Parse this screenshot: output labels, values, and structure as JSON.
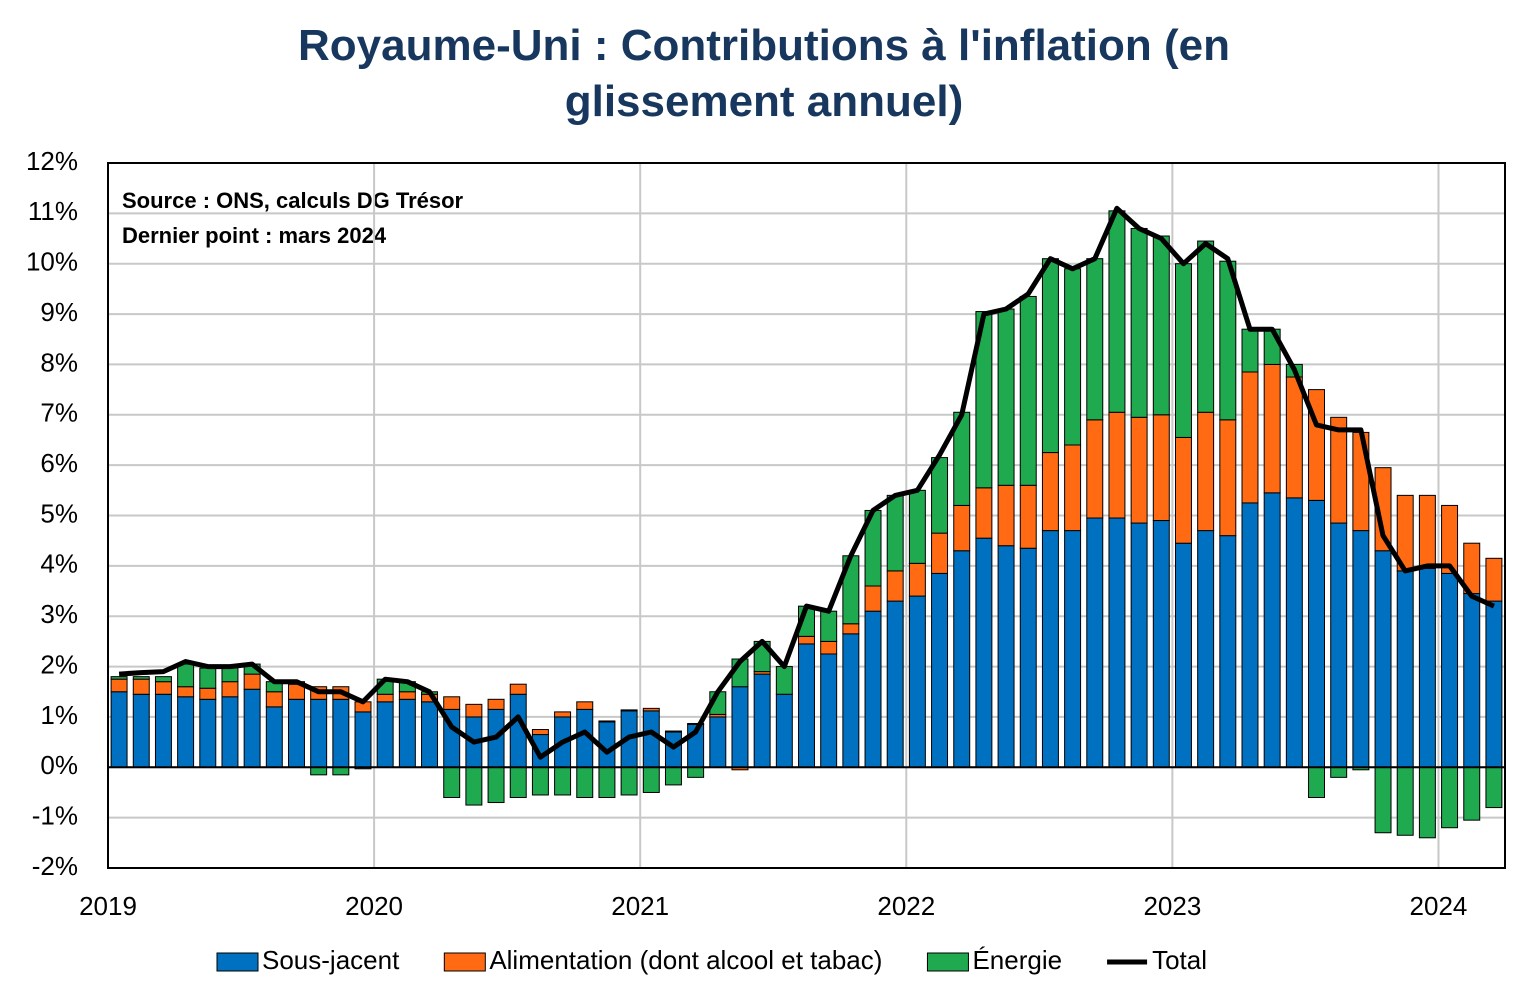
{
  "chart_data": {
    "type": "bar",
    "stacked": true,
    "title": "Royaume-Uni : Contributions à l'inflation (en glissement annuel)",
    "annotations": [
      "Source : ONS, calculs DG Trésor",
      "Dernier point : mars 2024"
    ],
    "categories": [
      "2019",
      null,
      null,
      null,
      null,
      null,
      null,
      null,
      null,
      null,
      null,
      null,
      "2020",
      null,
      null,
      null,
      null,
      null,
      null,
      null,
      null,
      null,
      null,
      null,
      "2021",
      null,
      null,
      null,
      null,
      null,
      null,
      null,
      null,
      null,
      null,
      null,
      "2022",
      null,
      null,
      null,
      null,
      null,
      null,
      null,
      null,
      null,
      null,
      null,
      "2023",
      null,
      null,
      null,
      null,
      null,
      null,
      null,
      null,
      null,
      null,
      null,
      "2024",
      null,
      null
    ],
    "series": [
      {
        "name": "Sous-jacent",
        "color": "#0070c0",
        "values": [
          1.5,
          1.45,
          1.45,
          1.4,
          1.35,
          1.4,
          1.55,
          1.2,
          1.35,
          1.35,
          1.35,
          1.1,
          1.3,
          1.35,
          1.3,
          1.15,
          1.0,
          1.15,
          1.45,
          0.65,
          1.0,
          1.15,
          0.9,
          1.12,
          1.12,
          0.7,
          0.85,
          1.0,
          1.6,
          1.85,
          1.45,
          2.45,
          2.25,
          2.65,
          3.1,
          3.3,
          3.4,
          3.85,
          4.3,
          4.55,
          4.4,
          4.35,
          4.7,
          4.7,
          4.95,
          4.95,
          4.85,
          4.9,
          4.45,
          4.7,
          4.6,
          5.25,
          5.45,
          5.35,
          5.3,
          4.85,
          4.7,
          4.3,
          3.9,
          3.95,
          3.85,
          3.45,
          3.3
        ]
      },
      {
        "name": "Alimentation (dont alcool et tabac)",
        "color": "#ff6a13",
        "values": [
          0.25,
          0.3,
          0.25,
          0.2,
          0.22,
          0.3,
          0.3,
          0.3,
          0.3,
          0.25,
          0.25,
          0.2,
          0.15,
          0.15,
          0.15,
          0.25,
          0.25,
          0.2,
          0.2,
          0.1,
          0.1,
          0.15,
          0.02,
          0.02,
          0.05,
          0.02,
          0.02,
          0.05,
          -0.05,
          0.05,
          0.0,
          0.15,
          0.25,
          0.2,
          0.5,
          0.6,
          0.65,
          0.8,
          0.9,
          1.0,
          1.2,
          1.25,
          1.55,
          1.7,
          1.95,
          2.1,
          2.1,
          2.1,
          2.1,
          2.35,
          2.3,
          2.6,
          2.55,
          2.4,
          2.2,
          2.1,
          1.95,
          1.65,
          1.5,
          1.45,
          1.35,
          1.0,
          0.85
        ]
      },
      {
        "name": "Énergie",
        "color": "#1faa4f",
        "values": [
          0.05,
          0.05,
          0.1,
          0.45,
          0.4,
          0.3,
          0.2,
          0.2,
          0.05,
          -0.15,
          -0.15,
          -0.03,
          0.3,
          0.2,
          0.05,
          -0.6,
          -0.75,
          -0.7,
          -0.6,
          -0.55,
          -0.55,
          -0.6,
          -0.6,
          -0.55,
          -0.5,
          -0.35,
          -0.2,
          0.45,
          0.55,
          0.6,
          0.55,
          0.6,
          0.6,
          1.35,
          1.5,
          1.5,
          1.45,
          1.5,
          1.85,
          3.5,
          3.5,
          3.75,
          3.85,
          3.5,
          3.2,
          4.0,
          3.75,
          3.55,
          3.45,
          3.4,
          3.15,
          0.85,
          0.7,
          0.25,
          -0.6,
          -0.2,
          -0.05,
          -1.3,
          -1.35,
          -1.4,
          -1.2,
          -1.05,
          -0.8
        ]
      },
      {
        "name": "Total",
        "type": "line",
        "color": "#000000",
        "values": [
          1.85,
          1.88,
          1.9,
          2.1,
          2.0,
          2.0,
          2.05,
          1.7,
          1.7,
          1.5,
          1.5,
          1.3,
          1.75,
          1.7,
          1.5,
          0.8,
          0.5,
          0.6,
          1.0,
          0.2,
          0.5,
          0.7,
          0.3,
          0.6,
          0.7,
          0.4,
          0.7,
          1.5,
          2.1,
          2.5,
          2.0,
          3.2,
          3.1,
          4.2,
          5.1,
          5.4,
          5.5,
          6.2,
          7.0,
          9.0,
          9.1,
          9.4,
          10.1,
          9.9,
          10.1,
          11.1,
          10.7,
          10.5,
          10.0,
          10.4,
          10.1,
          8.7,
          8.7,
          7.9,
          6.8,
          6.7,
          6.7,
          4.6,
          3.9,
          4.0,
          4.0,
          3.4,
          3.2
        ]
      }
    ],
    "ylim": [
      -2,
      12
    ],
    "yticks": [
      {
        "value": -2,
        "label": "-2%"
      },
      {
        "value": -1,
        "label": "-1%"
      },
      {
        "value": 0,
        "label": "0%"
      },
      {
        "value": 1,
        "label": "1%"
      },
      {
        "value": 2,
        "label": "2%"
      },
      {
        "value": 3,
        "label": "3%"
      },
      {
        "value": 4,
        "label": "4%"
      },
      {
        "value": 5,
        "label": "5%"
      },
      {
        "value": 6,
        "label": "6%"
      },
      {
        "value": 7,
        "label": "7%"
      },
      {
        "value": 8,
        "label": "8%"
      },
      {
        "value": 9,
        "label": "9%"
      },
      {
        "value": 10,
        "label": "10%"
      },
      {
        "value": 11,
        "label": "11%"
      },
      {
        "value": 12,
        "label": "12%"
      }
    ],
    "grid": true,
    "legend": "bottom"
  }
}
